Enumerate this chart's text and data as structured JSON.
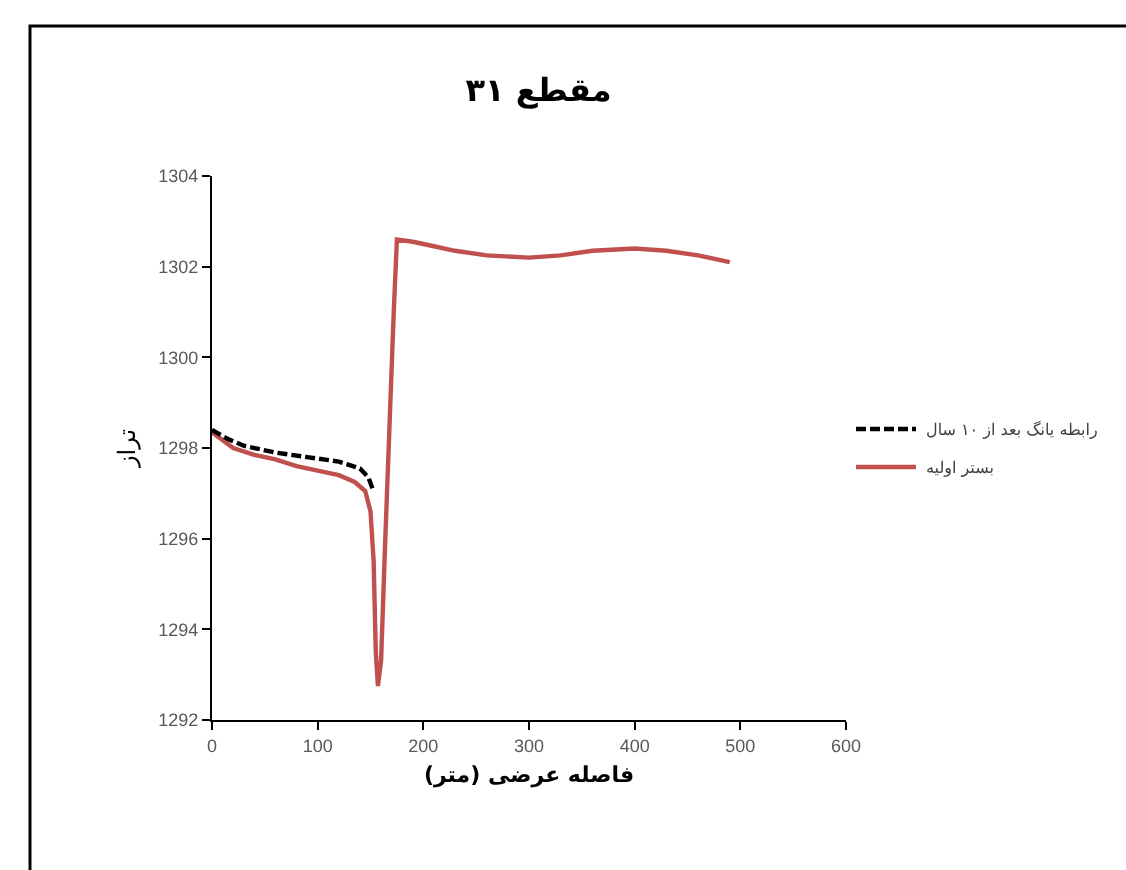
{
  "chart_data": {
    "type": "line",
    "title": "مقطع ۳۱",
    "xlabel": "فاصله عرضی (متر)",
    "ylabel": "تراز",
    "xlim": [
      0,
      600
    ],
    "xticks": [
      0,
      100,
      200,
      300,
      400,
      500,
      600
    ],
    "ylim": [
      1292,
      1304
    ],
    "yticks": [
      1292,
      1294,
      1296,
      1298,
      1300,
      1302,
      1304
    ],
    "grid": false,
    "legend": "right",
    "series": [
      {
        "name": "رابطه یانگ بعد از ۱۰ سال",
        "color": "#000000",
        "line_style": "dashed",
        "x": [
          0,
          15,
          30,
          60,
          90,
          120,
          140,
          148,
          152
        ],
        "values": [
          1298.4,
          1298.2,
          1298.05,
          1297.9,
          1297.8,
          1297.7,
          1297.55,
          1297.35,
          1297.1
        ]
      },
      {
        "name": "بستر اولیه",
        "color": "#c0504d",
        "line_style": "solid",
        "x": [
          0,
          20,
          40,
          60,
          80,
          100,
          120,
          135,
          145,
          150,
          153,
          155,
          157,
          160,
          164,
          168,
          172,
          175,
          190,
          210,
          230,
          260,
          300,
          330,
          360,
          400,
          430,
          460,
          490
        ],
        "values": [
          1298.35,
          1298.0,
          1297.85,
          1297.75,
          1297.6,
          1297.5,
          1297.4,
          1297.25,
          1297.05,
          1296.6,
          1295.5,
          1293.5,
          1292.75,
          1293.3,
          1296.0,
          1298.5,
          1301.0,
          1302.6,
          1302.55,
          1302.45,
          1302.35,
          1302.25,
          1302.2,
          1302.25,
          1302.35,
          1302.4,
          1302.35,
          1302.25,
          1302.1
        ]
      }
    ]
  }
}
